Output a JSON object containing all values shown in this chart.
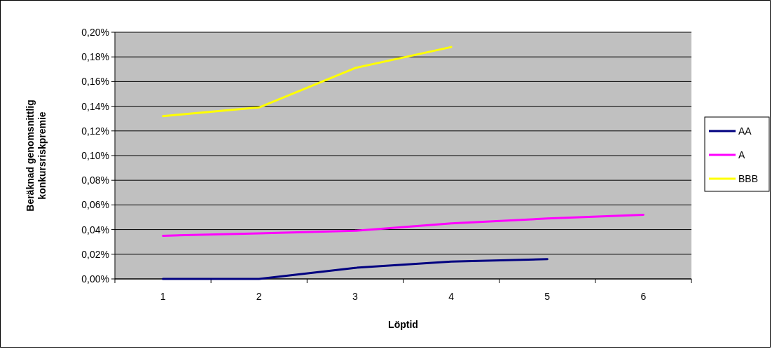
{
  "chart_data": {
    "type": "line",
    "xlabel": "Löptid",
    "ylabel": "Beräknad genomsnittlig konkursriskpremie",
    "categories": [
      "1",
      "2",
      "3",
      "4",
      "5",
      "6"
    ],
    "series": [
      {
        "name": "AA",
        "color": "#000080",
        "values": [
          0,
          0,
          0.009,
          0.014,
          0.016,
          null
        ]
      },
      {
        "name": "A",
        "color": "#ff00ff",
        "values": [
          0.035,
          0.037,
          0.039,
          0.045,
          0.049,
          0.052
        ]
      },
      {
        "name": "BBB",
        "color": "#ffff00",
        "values": [
          0.132,
          0.139,
          0.171,
          0.188,
          null,
          null
        ]
      }
    ],
    "ylim": [
      0,
      0.2
    ],
    "yticks": [
      {
        "value": 0,
        "label": "0,00%"
      },
      {
        "value": 0.02,
        "label": "0,02%"
      },
      {
        "value": 0.04,
        "label": "0,04%"
      },
      {
        "value": 0.06,
        "label": "0,06%"
      },
      {
        "value": 0.08,
        "label": "0,08%"
      },
      {
        "value": 0.1,
        "label": "0,10%"
      },
      {
        "value": 0.12,
        "label": "0,12%"
      },
      {
        "value": 0.14,
        "label": "0,14%"
      },
      {
        "value": 0.16,
        "label": "0,16%"
      },
      {
        "value": 0.18,
        "label": "0,18%"
      },
      {
        "value": 0.2,
        "label": "0,20%"
      }
    ],
    "grid": "y",
    "legend": "right",
    "marker": "none",
    "line_style": "solid"
  }
}
